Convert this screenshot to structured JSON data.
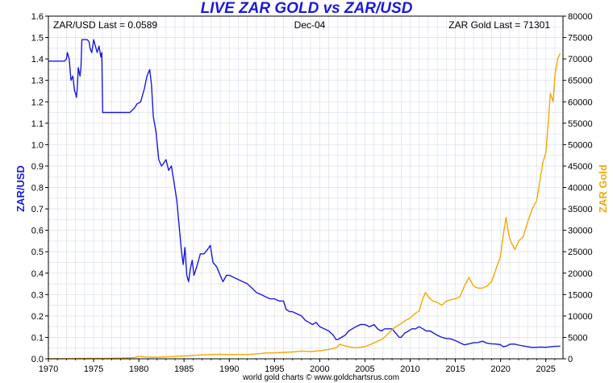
{
  "chart_data": {
    "type": "line",
    "title": "LIVE ZAR GOLD vs ZAR/USD",
    "left_info": "ZAR/USD Last = 0.0589",
    "center_info": "Dec-04",
    "right_info": "ZAR Gold Last = 71301",
    "ylabel_left": "ZAR/USD",
    "ylabel_right": "ZAR Gold",
    "footer": "world gold charts © www.goldchartsrus.com",
    "xlim": [
      1970,
      2026.9
    ],
    "ylim_left": [
      0,
      1.6
    ],
    "ylim_right": [
      0,
      80000
    ],
    "x_ticks": [
      1970,
      1975,
      1980,
      1985,
      1990,
      1995,
      2000,
      2005,
      2010,
      2015,
      2020,
      2025
    ],
    "y_ticks_left": [
      "0.0",
      "0.1",
      "0.2",
      "0.3",
      "0.4",
      "0.5",
      "0.6",
      "0.7",
      "0.8",
      "0.9",
      "1.0",
      "1.1",
      "1.2",
      "1.3",
      "1.4",
      "1.5",
      "1.6"
    ],
    "y_ticks_right": [
      "0",
      "5000",
      "10000",
      "15000",
      "20000",
      "25000",
      "30000",
      "35000",
      "40000",
      "45000",
      "50000",
      "55000",
      "60000",
      "65000",
      "70000",
      "75000",
      "80000"
    ],
    "grid": true,
    "colors": {
      "zar_usd": "#1a1adb",
      "zar_gold": "#f5a800",
      "title": "#1a1adb",
      "grid": "#dde3f0"
    },
    "series": [
      {
        "name": "ZAR/USD",
        "axis": "left",
        "points": [
          [
            1970.0,
            1.39
          ],
          [
            1971.8,
            1.39
          ],
          [
            1972.0,
            1.4
          ],
          [
            1972.1,
            1.43
          ],
          [
            1972.3,
            1.4
          ],
          [
            1972.5,
            1.3
          ],
          [
            1972.7,
            1.32
          ],
          [
            1972.9,
            1.25
          ],
          [
            1973.0,
            1.24
          ],
          [
            1973.1,
            1.22
          ],
          [
            1973.2,
            1.27
          ],
          [
            1973.3,
            1.36
          ],
          [
            1973.5,
            1.32
          ],
          [
            1973.6,
            1.36
          ],
          [
            1973.7,
            1.49
          ],
          [
            1974.3,
            1.49
          ],
          [
            1974.5,
            1.48
          ],
          [
            1974.6,
            1.45
          ],
          [
            1974.8,
            1.43
          ],
          [
            1975.0,
            1.49
          ],
          [
            1975.2,
            1.46
          ],
          [
            1975.4,
            1.43
          ],
          [
            1975.6,
            1.46
          ],
          [
            1975.8,
            1.41
          ],
          [
            1975.9,
            1.43
          ],
          [
            1976.0,
            1.15
          ],
          [
            1977.0,
            1.15
          ],
          [
            1978.0,
            1.15
          ],
          [
            1979.0,
            1.15
          ],
          [
            1979.5,
            1.17
          ],
          [
            1979.8,
            1.19
          ],
          [
            1980.2,
            1.2
          ],
          [
            1980.6,
            1.26
          ],
          [
            1980.9,
            1.32
          ],
          [
            1981.2,
            1.35
          ],
          [
            1981.4,
            1.28
          ],
          [
            1981.6,
            1.13
          ],
          [
            1981.9,
            1.06
          ],
          [
            1982.2,
            0.93
          ],
          [
            1982.5,
            0.9
          ],
          [
            1982.7,
            0.91
          ],
          [
            1983.0,
            0.93
          ],
          [
            1983.3,
            0.88
          ],
          [
            1983.6,
            0.9
          ],
          [
            1983.9,
            0.82
          ],
          [
            1984.2,
            0.74
          ],
          [
            1984.5,
            0.6
          ],
          [
            1984.7,
            0.51
          ],
          [
            1984.9,
            0.44
          ],
          [
            1985.1,
            0.52
          ],
          [
            1985.3,
            0.39
          ],
          [
            1985.5,
            0.36
          ],
          [
            1985.7,
            0.42
          ],
          [
            1985.9,
            0.46
          ],
          [
            1986.1,
            0.39
          ],
          [
            1986.4,
            0.43
          ],
          [
            1986.8,
            0.49
          ],
          [
            1987.2,
            0.49
          ],
          [
            1987.6,
            0.51
          ],
          [
            1987.9,
            0.53
          ],
          [
            1988.2,
            0.45
          ],
          [
            1988.6,
            0.43
          ],
          [
            1988.9,
            0.4
          ],
          [
            1989.3,
            0.36
          ],
          [
            1989.7,
            0.39
          ],
          [
            1990.0,
            0.39
          ],
          [
            1990.5,
            0.38
          ],
          [
            1991.0,
            0.37
          ],
          [
            1991.5,
            0.36
          ],
          [
            1992.0,
            0.35
          ],
          [
            1992.5,
            0.33
          ],
          [
            1993.0,
            0.31
          ],
          [
            1993.5,
            0.3
          ],
          [
            1994.0,
            0.29
          ],
          [
            1994.5,
            0.28
          ],
          [
            1995.0,
            0.28
          ],
          [
            1995.5,
            0.27
          ],
          [
            1996.0,
            0.27
          ],
          [
            1996.3,
            0.23
          ],
          [
            1996.7,
            0.22
          ],
          [
            1997.0,
            0.22
          ],
          [
            1997.5,
            0.21
          ],
          [
            1998.0,
            0.2
          ],
          [
            1998.4,
            0.18
          ],
          [
            1998.8,
            0.17
          ],
          [
            1999.2,
            0.16
          ],
          [
            1999.6,
            0.17
          ],
          [
            2000.0,
            0.15
          ],
          [
            2000.5,
            0.14
          ],
          [
            2001.0,
            0.13
          ],
          [
            2001.5,
            0.11
          ],
          [
            2001.8,
            0.09
          ],
          [
            2002.0,
            0.09
          ],
          [
            2002.4,
            0.1
          ],
          [
            2002.8,
            0.11
          ],
          [
            2003.2,
            0.13
          ],
          [
            2003.6,
            0.14
          ],
          [
            2004.0,
            0.15
          ],
          [
            2004.5,
            0.16
          ],
          [
            2005.0,
            0.16
          ],
          [
            2005.5,
            0.15
          ],
          [
            2006.0,
            0.16
          ],
          [
            2006.4,
            0.14
          ],
          [
            2006.8,
            0.13
          ],
          [
            2007.2,
            0.14
          ],
          [
            2007.6,
            0.14
          ],
          [
            2008.0,
            0.14
          ],
          [
            2008.4,
            0.12
          ],
          [
            2008.8,
            0.1
          ],
          [
            2009.0,
            0.1
          ],
          [
            2009.4,
            0.12
          ],
          [
            2009.8,
            0.13
          ],
          [
            2010.2,
            0.14
          ],
          [
            2010.6,
            0.14
          ],
          [
            2011.0,
            0.15
          ],
          [
            2011.4,
            0.14
          ],
          [
            2011.8,
            0.13
          ],
          [
            2012.2,
            0.13
          ],
          [
            2012.6,
            0.12
          ],
          [
            2013.0,
            0.11
          ],
          [
            2013.5,
            0.1
          ],
          [
            2014.0,
            0.095
          ],
          [
            2014.5,
            0.093
          ],
          [
            2015.0,
            0.085
          ],
          [
            2015.5,
            0.075
          ],
          [
            2016.0,
            0.065
          ],
          [
            2016.5,
            0.07
          ],
          [
            2017.0,
            0.075
          ],
          [
            2017.5,
            0.076
          ],
          [
            2018.0,
            0.082
          ],
          [
            2018.5,
            0.073
          ],
          [
            2019.0,
            0.07
          ],
          [
            2019.5,
            0.069
          ],
          [
            2020.0,
            0.066
          ],
          [
            2020.3,
            0.056
          ],
          [
            2020.7,
            0.06
          ],
          [
            2021.0,
            0.068
          ],
          [
            2021.5,
            0.069
          ],
          [
            2022.0,
            0.064
          ],
          [
            2022.5,
            0.06
          ],
          [
            2023.0,
            0.057
          ],
          [
            2023.5,
            0.053
          ],
          [
            2024.0,
            0.054
          ],
          [
            2024.5,
            0.055
          ],
          [
            2025.0,
            0.054
          ],
          [
            2025.5,
            0.056
          ],
          [
            2026.0,
            0.058
          ],
          [
            2026.6,
            0.059
          ]
        ]
      },
      {
        "name": "ZAR Gold",
        "axis": "right",
        "points": [
          [
            1970.0,
            25
          ],
          [
            1972.0,
            40
          ],
          [
            1974.0,
            100
          ],
          [
            1976.0,
            100
          ],
          [
            1978.0,
            170
          ],
          [
            1979.5,
            300
          ],
          [
            1980.0,
            550
          ],
          [
            1981.0,
            400
          ],
          [
            1982.0,
            370
          ],
          [
            1983.0,
            450
          ],
          [
            1984.0,
            540
          ],
          [
            1985.0,
            650
          ],
          [
            1986.0,
            800
          ],
          [
            1987.0,
            900
          ],
          [
            1988.0,
            1000
          ],
          [
            1989.0,
            1050
          ],
          [
            1990.0,
            1000
          ],
          [
            1991.0,
            1000
          ],
          [
            1992.0,
            1000
          ],
          [
            1993.0,
            1150
          ],
          [
            1994.0,
            1350
          ],
          [
            1995.0,
            1400
          ],
          [
            1996.0,
            1500
          ],
          [
            1997.0,
            1600
          ],
          [
            1998.0,
            1800
          ],
          [
            1999.0,
            1700
          ],
          [
            2000.0,
            1900
          ],
          [
            2001.0,
            2200
          ],
          [
            2001.9,
            2600
          ],
          [
            2002.2,
            3400
          ],
          [
            2002.8,
            3000
          ],
          [
            2003.5,
            2700
          ],
          [
            2004.0,
            2600
          ],
          [
            2005.0,
            2800
          ],
          [
            2006.0,
            3700
          ],
          [
            2007.0,
            4700
          ],
          [
            2008.0,
            6800
          ],
          [
            2008.4,
            7500
          ],
          [
            2009.0,
            8200
          ],
          [
            2009.5,
            9000
          ],
          [
            2010.0,
            9500
          ],
          [
            2010.5,
            10500
          ],
          [
            2011.0,
            11200
          ],
          [
            2011.4,
            14000
          ],
          [
            2011.7,
            15500
          ],
          [
            2012.0,
            14500
          ],
          [
            2012.5,
            13500
          ],
          [
            2013.0,
            13200
          ],
          [
            2013.5,
            12500
          ],
          [
            2014.0,
            13500
          ],
          [
            2014.5,
            13800
          ],
          [
            2015.0,
            14000
          ],
          [
            2015.5,
            14500
          ],
          [
            2016.0,
            17000
          ],
          [
            2016.5,
            19000
          ],
          [
            2017.0,
            17000
          ],
          [
            2017.5,
            16500
          ],
          [
            2018.0,
            16500
          ],
          [
            2018.5,
            17000
          ],
          [
            2019.0,
            18000
          ],
          [
            2019.5,
            21000
          ],
          [
            2020.0,
            24000
          ],
          [
            2020.3,
            29000
          ],
          [
            2020.6,
            33000
          ],
          [
            2020.9,
            29000
          ],
          [
            2021.2,
            27000
          ],
          [
            2021.6,
            25500
          ],
          [
            2022.0,
            27500
          ],
          [
            2022.5,
            28500
          ],
          [
            2023.0,
            32000
          ],
          [
            2023.5,
            35000
          ],
          [
            2024.0,
            37000
          ],
          [
            2024.3,
            41000
          ],
          [
            2024.7,
            46000
          ],
          [
            2025.0,
            48000
          ],
          [
            2025.3,
            56000
          ],
          [
            2025.5,
            62000
          ],
          [
            2025.8,
            60000
          ],
          [
            2026.0,
            66000
          ],
          [
            2026.3,
            70000
          ],
          [
            2026.6,
            71300
          ]
        ]
      }
    ]
  }
}
